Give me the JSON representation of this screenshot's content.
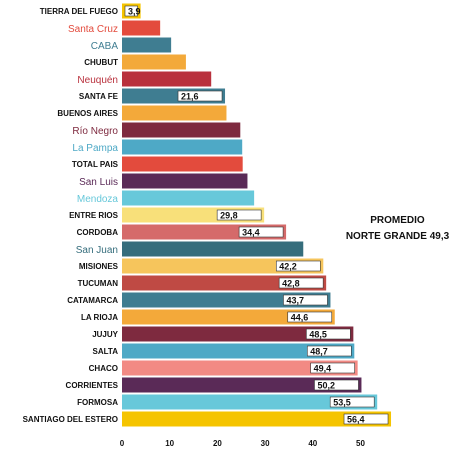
{
  "chart_data": {
    "type": "bar",
    "orientation": "horizontal",
    "xlim": [
      0,
      56
    ],
    "x_ticks": [
      0,
      10,
      20,
      30,
      40,
      50
    ],
    "grid": false,
    "annotation": {
      "line1": "PROMEDIO",
      "line2": "NORTE GRANDE  49,3"
    },
    "bars": [
      {
        "label": "TIERRA DEL FUEGO",
        "value": 3.9,
        "data_label": "3,9",
        "color": "#F5C400",
        "label_style": "caps"
      },
      {
        "label": "Santa Cruz",
        "value": 8.0,
        "color": "#E34B3D",
        "label_style": "normal"
      },
      {
        "label": "CABA",
        "value": 10.3,
        "color": "#3F7D91",
        "label_style": "normal"
      },
      {
        "label": "CHUBUT",
        "value": 13.4,
        "color": "#F3A93A",
        "label_style": "caps"
      },
      {
        "label": "Neuquén",
        "value": 18.7,
        "color": "#B9313D",
        "label_style": "normal"
      },
      {
        "label": "SANTA FE",
        "value": 21.6,
        "data_label": "21,6",
        "color": "#3F7D91",
        "label_style": "caps"
      },
      {
        "label": "BUENOS AIRES",
        "value": 21.9,
        "color": "#F3A93A",
        "label_style": "caps"
      },
      {
        "label": "Río Negro",
        "value": 24.8,
        "color": "#7E2A3F",
        "label_style": "normal"
      },
      {
        "label": "La Pampa",
        "value": 25.2,
        "color": "#4EA9C6",
        "label_style": "normal"
      },
      {
        "label": "TOTAL  PAIS",
        "value": 25.3,
        "color": "#E34B3D",
        "label_style": "caps"
      },
      {
        "label": "San Luis",
        "value": 26.3,
        "color": "#5A2A57",
        "label_style": "normal"
      },
      {
        "label": "Mendoza",
        "value": 27.7,
        "color": "#67C8DA",
        "label_style": "normal"
      },
      {
        "label": "ENTRE RIOS",
        "value": 29.8,
        "data_label": "29,8",
        "color": "#F8E07A",
        "label_style": "caps"
      },
      {
        "label": "CORDOBA",
        "value": 34.4,
        "data_label": "34,4",
        "color": "#D56A6A",
        "label_style": "caps"
      },
      {
        "label": "San Juan",
        "value": 38.0,
        "color": "#356D7C",
        "label_style": "normal"
      },
      {
        "label": "MISIONES",
        "value": 42.2,
        "data_label": "42,2",
        "color": "#F6C55C",
        "label_style": "caps"
      },
      {
        "label": "TUCUMAN",
        "value": 42.8,
        "data_label": "42,8",
        "color": "#BF4A44",
        "label_style": "caps"
      },
      {
        "label": "CATAMARCA",
        "value": 43.7,
        "data_label": "43,7",
        "color": "#3F7D91",
        "label_style": "caps"
      },
      {
        "label": "LA RIOJA",
        "value": 44.6,
        "data_label": "44,6",
        "color": "#F3A93A",
        "label_style": "caps"
      },
      {
        "label": "JUJUY",
        "value": 48.5,
        "data_label": "48,5",
        "color": "#7E2A3F",
        "label_style": "caps"
      },
      {
        "label": "SALTA",
        "value": 48.7,
        "data_label": "48,7",
        "color": "#4EA9C6",
        "label_style": "caps"
      },
      {
        "label": "CHACO",
        "value": 49.4,
        "data_label": "49,4",
        "color": "#F28A84",
        "label_style": "caps"
      },
      {
        "label": "CORRIENTES",
        "value": 50.2,
        "data_label": "50,2",
        "color": "#5A2A57",
        "label_style": "caps"
      },
      {
        "label": "FORMOSA",
        "value": 53.5,
        "data_label": "53,5",
        "color": "#67C8DA",
        "label_style": "caps"
      },
      {
        "label": "SANTIAGO DEL ESTERO",
        "value": 56.4,
        "data_label": "56,4",
        "color": "#F5C400",
        "label_style": "caps"
      }
    ]
  }
}
